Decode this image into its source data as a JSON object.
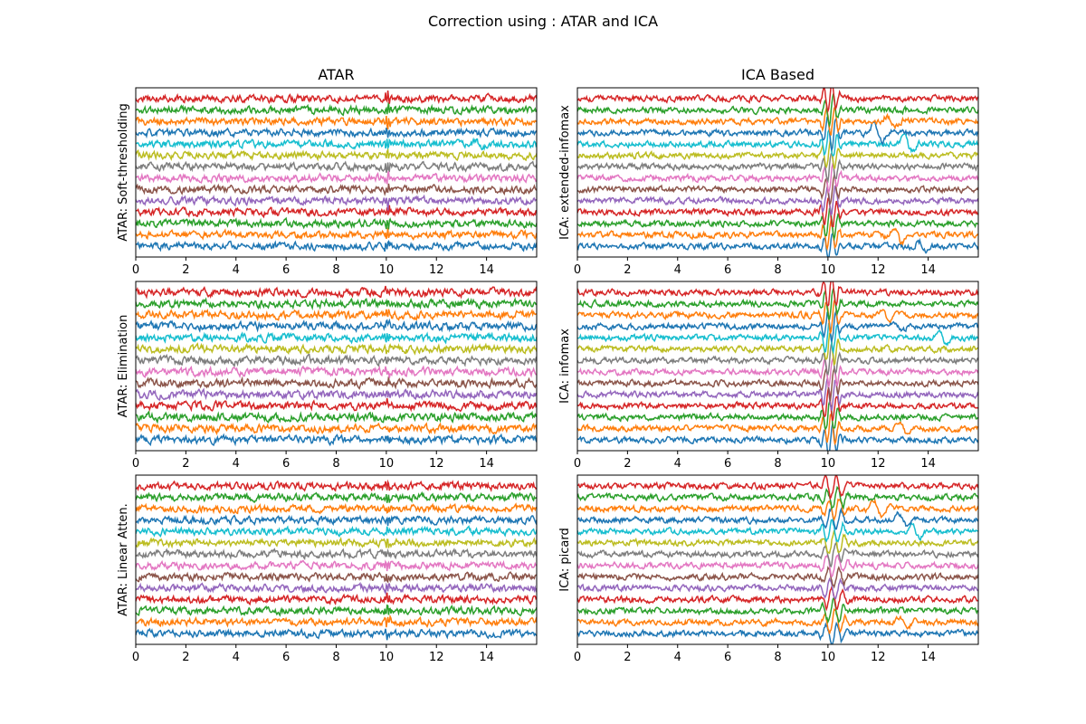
{
  "figure": {
    "suptitle": "Correction using : ATAR and ICA",
    "column_titles": [
      "ATAR",
      "ICA Based"
    ]
  },
  "channel_colors": [
    "#1f77b4",
    "#ff7f0e",
    "#2ca02c",
    "#d62728",
    "#9467bd",
    "#8c564b",
    "#e377c2",
    "#7f7f7f",
    "#bcbd22",
    "#17becf",
    "#1f77b4",
    "#ff7f0e",
    "#2ca02c",
    "#d62728"
  ],
  "chart_data": [
    {
      "type": "line",
      "row": 0,
      "col": 0,
      "title": "ATAR",
      "ylabel": "ATAR: Soft-thresholding",
      "xlim": [
        0,
        16
      ],
      "xticks": [
        0,
        2,
        4,
        6,
        8,
        10,
        12,
        14
      ],
      "n_channels": 14,
      "x_unit_note": "",
      "noise": 0.22,
      "artifact_window": [
        9.9,
        10.2
      ],
      "artifact_amp": 0.5,
      "slow_events": [
        {
          "ch": 9,
          "t": 13.7,
          "amp": 0.35
        }
      ]
    },
    {
      "type": "line",
      "row": 0,
      "col": 1,
      "title": "ICA Based",
      "ylabel": "ICA: extended-infomax",
      "xlim": [
        0,
        16
      ],
      "xticks": [
        0,
        2,
        4,
        6,
        8,
        10,
        12,
        14
      ],
      "n_channels": 14,
      "noise": 0.18,
      "artifact_window": [
        9.6,
        10.6
      ],
      "artifact_amp": 1.3,
      "slow_events": [
        {
          "ch": 0,
          "t": 13.8,
          "amp": 0.5
        },
        {
          "ch": 1,
          "t": 12.8,
          "amp": 0.9
        },
        {
          "ch": 10,
          "t": 12.0,
          "amp": 1.0
        },
        {
          "ch": 9,
          "t": 13.2,
          "amp": 0.8
        },
        {
          "ch": 11,
          "t": 12.5,
          "amp": 0.6
        }
      ]
    },
    {
      "type": "line",
      "row": 1,
      "col": 0,
      "title": "",
      "ylabel": "ATAR: Elimination",
      "xlim": [
        0,
        16
      ],
      "xticks": [
        0,
        2,
        4,
        6,
        8,
        10,
        12,
        14
      ],
      "n_channels": 14,
      "noise": 0.24,
      "artifact_window": [
        9.9,
        10.2
      ],
      "artifact_amp": 0.3,
      "slow_events": []
    },
    {
      "type": "line",
      "row": 1,
      "col": 1,
      "title": "",
      "ylabel": "ICA: infomax",
      "xlim": [
        0,
        16
      ],
      "xticks": [
        0,
        2,
        4,
        6,
        8,
        10,
        12,
        14
      ],
      "n_channels": 14,
      "noise": 0.18,
      "artifact_window": [
        9.6,
        10.6
      ],
      "artifact_amp": 1.4,
      "slow_events": [
        {
          "ch": 1,
          "t": 13.0,
          "amp": 0.5
        },
        {
          "ch": 9,
          "t": 14.6,
          "amp": 0.8
        },
        {
          "ch": 10,
          "t": 12.8,
          "amp": 0.5
        },
        {
          "ch": 11,
          "t": 12.3,
          "amp": 0.5
        }
      ]
    },
    {
      "type": "line",
      "row": 2,
      "col": 0,
      "title": "",
      "ylabel": "ATAR: Linear Atten.",
      "xlim": [
        0,
        16
      ],
      "xticks": [
        0,
        2,
        4,
        6,
        8,
        10,
        12,
        14
      ],
      "n_channels": 14,
      "noise": 0.22,
      "artifact_window": [
        9.9,
        10.2
      ],
      "artifact_amp": 0.4,
      "slow_events": []
    },
    {
      "type": "line",
      "row": 2,
      "col": 1,
      "title": "",
      "ylabel": "ICA: picard",
      "xlim": [
        0,
        16
      ],
      "xticks": [
        0,
        2,
        4,
        6,
        8,
        10,
        12,
        14
      ],
      "n_channels": 14,
      "noise": 0.18,
      "artifact_window": [
        9.6,
        10.9
      ],
      "artifact_amp": 1.0,
      "slow_events": [
        {
          "ch": 1,
          "t": 13.0,
          "amp": 0.6
        },
        {
          "ch": 9,
          "t": 13.5,
          "amp": 0.7
        },
        {
          "ch": 10,
          "t": 13.0,
          "amp": 0.7
        },
        {
          "ch": 11,
          "t": 12.0,
          "amp": 0.7
        }
      ]
    }
  ]
}
